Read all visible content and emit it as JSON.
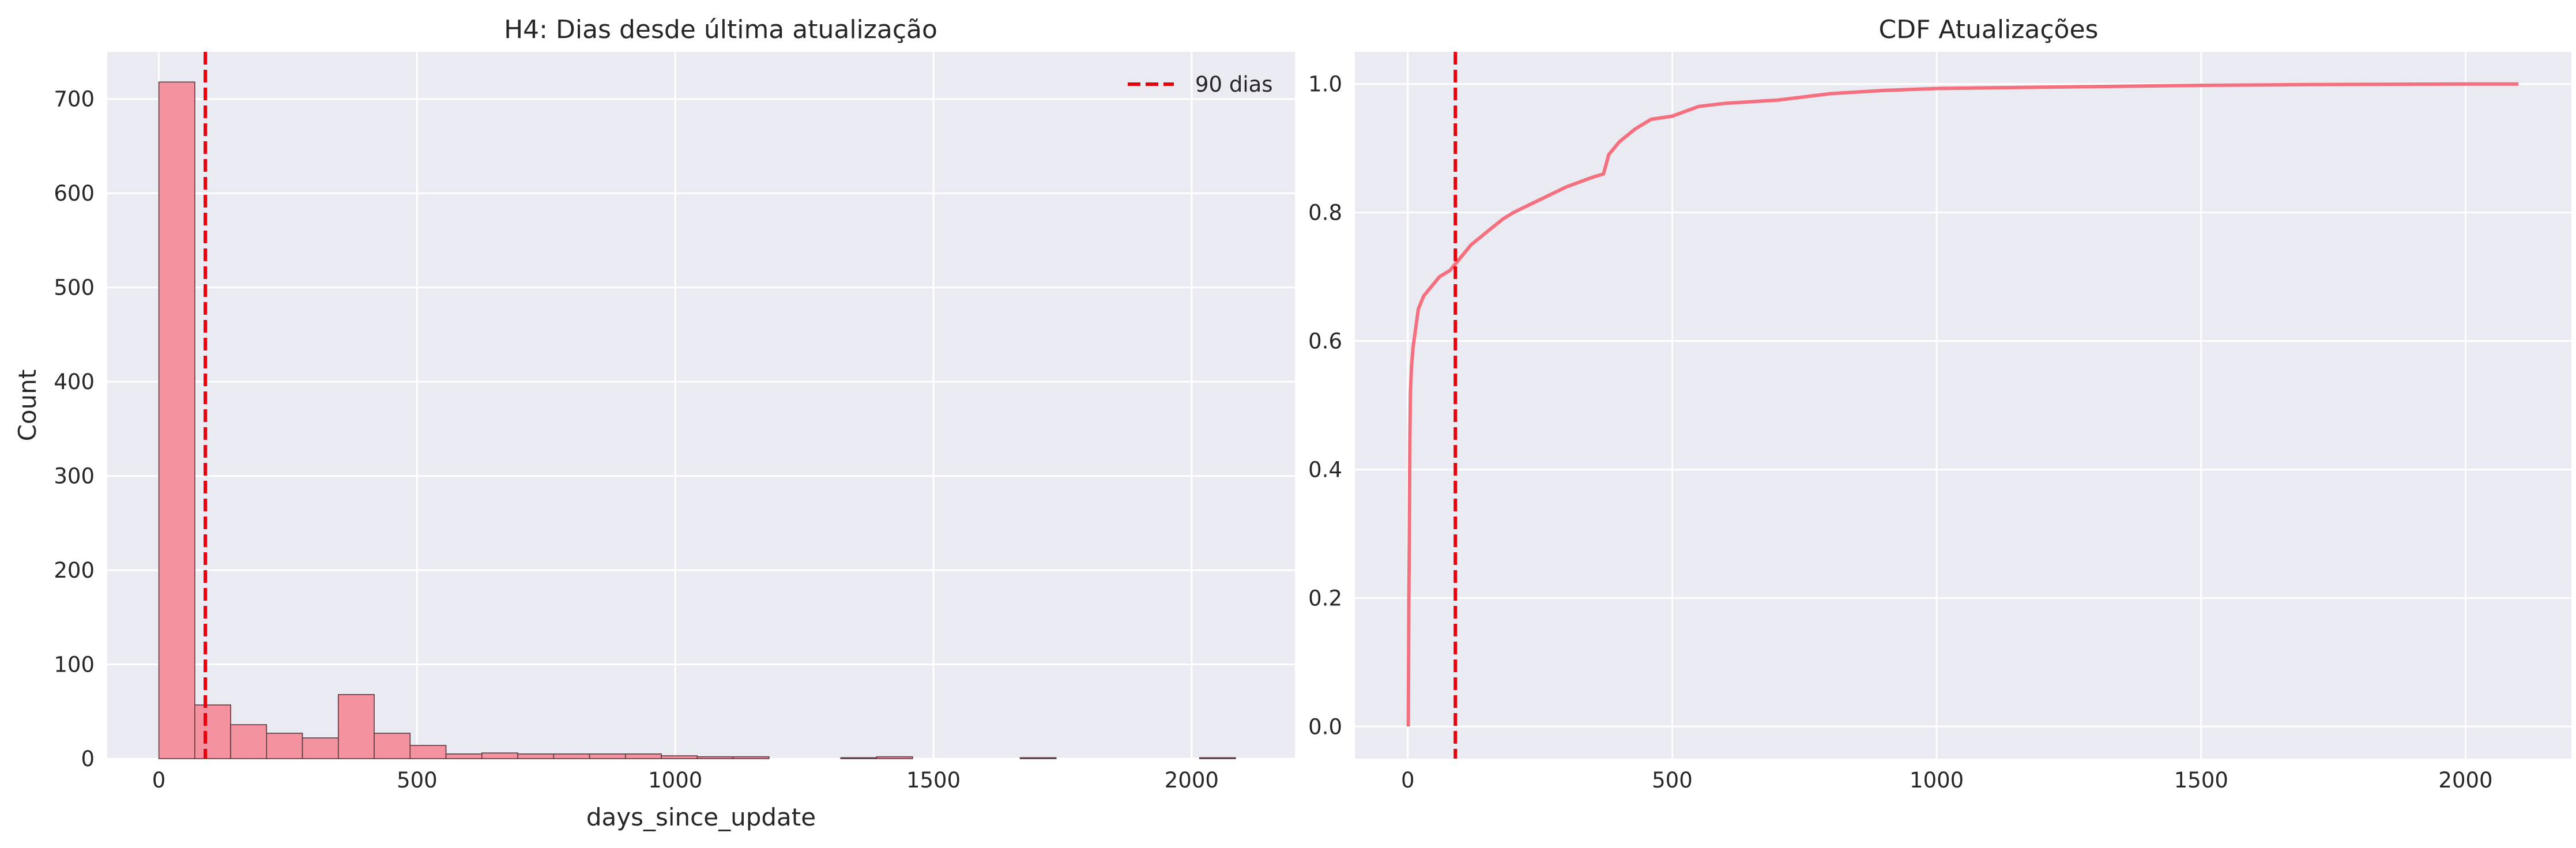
{
  "chart_data": [
    {
      "type": "bar",
      "title": "H4: Dias desde última atualização",
      "xlabel": "days_since_update",
      "ylabel": "Count",
      "xlim": [
        -100,
        2200
      ],
      "ylim": [
        0,
        750
      ],
      "xticks": [
        0,
        500,
        1000,
        1500,
        2000
      ],
      "xtick_labels": [
        "0",
        "500",
        "1000",
        "1500",
        "2000"
      ],
      "yticks": [
        0,
        100,
        200,
        300,
        400,
        500,
        600,
        700
      ],
      "ytick_labels": [
        "0",
        "100",
        "200",
        "300",
        "400",
        "500",
        "600",
        "700"
      ],
      "bin_start": 0,
      "bin_width": 69.5,
      "values": [
        718,
        57,
        36,
        27,
        22,
        68,
        27,
        14,
        5,
        6,
        5,
        5,
        5,
        5,
        3,
        2,
        2,
        0,
        0,
        1,
        2,
        0,
        0,
        0,
        1,
        0,
        0,
        0,
        0,
        1
      ],
      "bar_color": "#f5929f",
      "edge_color": "#5a3a40",
      "vline": {
        "x": 90,
        "color": "#e8000b",
        "label": "90 dias"
      },
      "legend": {
        "label": "90 dias",
        "position": "top-right"
      }
    },
    {
      "type": "line",
      "title": "CDF Atualizações",
      "xlabel": "",
      "ylabel": "",
      "xlim": [
        -100,
        2200
      ],
      "ylim": [
        -0.05,
        1.05
      ],
      "xticks": [
        0,
        500,
        1000,
        1500,
        2000
      ],
      "xtick_labels": [
        "0",
        "500",
        "1000",
        "1500",
        "2000"
      ],
      "yticks": [
        0,
        0.2,
        0.4,
        0.6,
        0.8,
        1.0
      ],
      "ytick_labels": [
        "0.0",
        "0.2",
        "0.4",
        "0.6",
        "0.8",
        "1.0"
      ],
      "line_color": "#f5707f",
      "series": [
        {
          "name": "CDF",
          "x": [
            1,
            2,
            3,
            4,
            5,
            7,
            10,
            15,
            20,
            30,
            40,
            50,
            60,
            70,
            80,
            90,
            100,
            120,
            150,
            180,
            200,
            250,
            300,
            350,
            370,
            380,
            400,
            430,
            460,
            500,
            550,
            600,
            700,
            800,
            900,
            1000,
            1200,
            1500,
            1700,
            2000,
            2100
          ],
          "y": [
            0.0,
            0.2,
            0.3,
            0.45,
            0.52,
            0.56,
            0.59,
            0.62,
            0.65,
            0.67,
            0.68,
            0.69,
            0.7,
            0.705,
            0.71,
            0.72,
            0.73,
            0.75,
            0.77,
            0.79,
            0.8,
            0.82,
            0.84,
            0.855,
            0.86,
            0.89,
            0.91,
            0.93,
            0.945,
            0.95,
            0.965,
            0.97,
            0.975,
            0.985,
            0.99,
            0.993,
            0.995,
            0.998,
            0.999,
            1.0,
            1.0
          ]
        }
      ],
      "vline": {
        "x": 90,
        "color": "#e8000b"
      }
    }
  ]
}
